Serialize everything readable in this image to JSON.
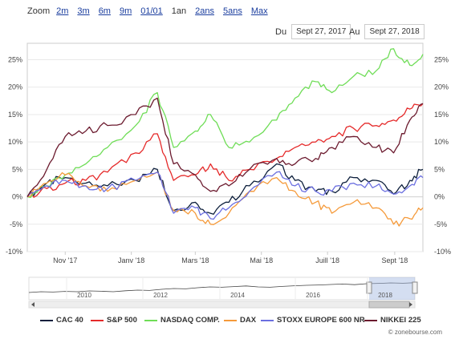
{
  "zoom": {
    "label": "Zoom",
    "options": [
      "2m",
      "3m",
      "6m",
      "9m",
      "01/01",
      "1an",
      "2ans",
      "5ans",
      "Max"
    ],
    "active": "1an"
  },
  "range": {
    "from_label": "Du",
    "from_value": "Sept 27, 2017",
    "to_label": "Au",
    "to_value": "Sept 27, 2018"
  },
  "watermark": "zonebourse.com",
  "chart_data": {
    "type": "line",
    "x_labels": [
      "Nov '17",
      "Janv '18",
      "Mars '18",
      "Mai '18",
      "Juill '18",
      "Sept '18"
    ],
    "y_ticks": [
      "-10%",
      "-5%",
      "0%",
      "5%",
      "10%",
      "15%",
      "20%",
      "25%"
    ],
    "ylim": [
      -10,
      28
    ],
    "grid": true,
    "legend_position": "bottom",
    "series": [
      {
        "name": "CAC 40",
        "color": "#0d1f3c",
        "x": [
          "2017-09-27",
          "2017-10-15",
          "2017-11-01",
          "2017-11-20",
          "2017-12-10",
          "2018-01-05",
          "2018-01-25",
          "2018-02-09",
          "2018-03-01",
          "2018-03-15",
          "2018-04-01",
          "2018-04-20",
          "2018-05-15",
          "2018-06-01",
          "2018-06-20",
          "2018-07-05",
          "2018-07-25",
          "2018-08-15",
          "2018-08-31",
          "2018-09-15",
          "2018-09-27"
        ],
        "values": [
          0,
          2.5,
          3.5,
          2.5,
          2,
          3,
          5,
          -2.5,
          -1,
          -3,
          -1,
          2,
          6,
          3,
          1,
          1,
          3.5,
          3,
          0.5,
          3,
          5
        ]
      },
      {
        "name": "S&P 500",
        "color": "#e52a2a",
        "x": [
          "2017-09-27",
          "2017-10-15",
          "2017-11-01",
          "2017-11-20",
          "2017-12-10",
          "2018-01-05",
          "2018-01-25",
          "2018-02-09",
          "2018-03-01",
          "2018-03-15",
          "2018-04-01",
          "2018-04-20",
          "2018-05-15",
          "2018-06-01",
          "2018-06-20",
          "2018-07-05",
          "2018-07-25",
          "2018-08-15",
          "2018-08-31",
          "2018-09-15",
          "2018-09-27"
        ],
        "values": [
          0,
          1.5,
          2.5,
          3,
          4.5,
          8,
          11.5,
          3,
          4,
          6,
          3,
          5,
          7,
          9,
          10,
          11,
          12.5,
          13,
          14,
          16,
          17
        ]
      },
      {
        "name": "NASDAQ COMP.",
        "color": "#6fdd57",
        "x": [
          "2017-09-27",
          "2017-10-15",
          "2017-11-01",
          "2017-11-20",
          "2017-12-10",
          "2018-01-05",
          "2018-01-25",
          "2018-02-09",
          "2018-03-01",
          "2018-03-15",
          "2018-04-01",
          "2018-04-20",
          "2018-05-15",
          "2018-06-01",
          "2018-06-20",
          "2018-07-05",
          "2018-07-25",
          "2018-08-15",
          "2018-08-31",
          "2018-09-15",
          "2018-09-27"
        ],
        "values": [
          0,
          2,
          4,
          6,
          9,
          13,
          19,
          9,
          12,
          15,
          9,
          10,
          14,
          18,
          21,
          19,
          22,
          23,
          27,
          24,
          26
        ]
      },
      {
        "name": "DAX",
        "color": "#f59a3a",
        "x": [
          "2017-09-27",
          "2017-10-15",
          "2017-11-01",
          "2017-11-20",
          "2017-12-10",
          "2018-01-05",
          "2018-01-25",
          "2018-02-09",
          "2018-03-01",
          "2018-03-15",
          "2018-04-01",
          "2018-04-20",
          "2018-05-15",
          "2018-06-01",
          "2018-06-20",
          "2018-07-05",
          "2018-07-25",
          "2018-08-15",
          "2018-08-31",
          "2018-09-15",
          "2018-09-27"
        ],
        "values": [
          0,
          2.5,
          4,
          2,
          1,
          3,
          4.5,
          -2.5,
          -3,
          -5,
          -3,
          1,
          3.5,
          1,
          -1,
          -3,
          -1,
          -2,
          -5,
          -4,
          -2
        ]
      },
      {
        "name": "STOXX EUROPE 600 NR",
        "color": "#6b6fe0",
        "x": [
          "2017-09-27",
          "2017-10-15",
          "2017-11-01",
          "2017-11-20",
          "2017-12-10",
          "2018-01-05",
          "2018-01-25",
          "2018-02-09",
          "2018-03-01",
          "2018-03-15",
          "2018-04-01",
          "2018-04-20",
          "2018-05-15",
          "2018-06-01",
          "2018-06-20",
          "2018-07-05",
          "2018-07-25",
          "2018-08-15",
          "2018-08-31",
          "2018-09-15",
          "2018-09-27"
        ],
        "values": [
          0,
          2,
          3,
          2,
          1.5,
          3,
          4.5,
          -3,
          -2,
          -4,
          -2,
          1,
          4.5,
          2,
          1,
          1,
          2.5,
          2,
          0.5,
          2,
          3.5
        ]
      },
      {
        "name": "NIKKEI 225",
        "color": "#6b1a2e",
        "x": [
          "2017-09-27",
          "2017-10-15",
          "2017-11-01",
          "2017-11-20",
          "2017-12-10",
          "2018-01-05",
          "2018-01-25",
          "2018-02-09",
          "2018-03-01",
          "2018-03-15",
          "2018-04-01",
          "2018-04-20",
          "2018-05-15",
          "2018-06-01",
          "2018-06-20",
          "2018-07-05",
          "2018-07-25",
          "2018-08-15",
          "2018-08-31",
          "2018-09-15",
          "2018-09-27"
        ],
        "values": [
          0,
          5,
          11,
          12,
          13,
          15,
          18,
          6,
          4,
          1,
          2,
          5,
          7,
          6,
          7,
          9,
          11,
          9,
          8,
          14,
          17
        ]
      }
    ]
  },
  "navigator": {
    "years": [
      "2010",
      "2012",
      "2014",
      "2016",
      "2018"
    ],
    "values": [
      0.25,
      0.3,
      0.28,
      0.32,
      0.3,
      0.35,
      0.33,
      0.3,
      0.36,
      0.4,
      0.38,
      0.45,
      0.5,
      0.48,
      0.55,
      0.6,
      0.58,
      0.62,
      0.66,
      0.6,
      0.58,
      0.63,
      0.67,
      0.7,
      0.72,
      0.75,
      0.78,
      0.74,
      0.8,
      0.82,
      0.85,
      0.83,
      0.86
    ]
  }
}
